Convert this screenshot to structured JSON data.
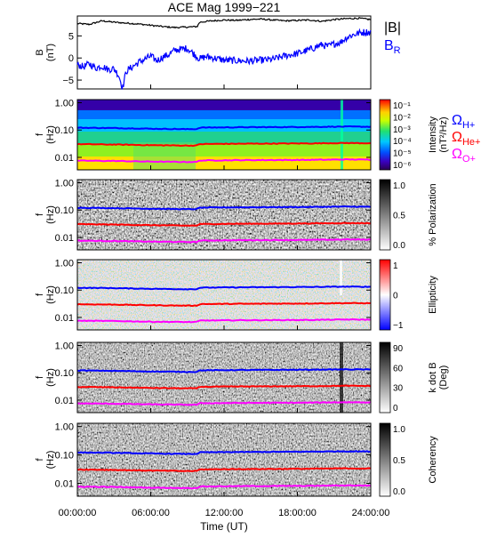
{
  "title": "ACE Mag 1999−221",
  "chart_data": [
    {
      "type": "line",
      "panel": "magnetic field",
      "ylabel": "B\n(nT)",
      "yticks": [
        "5",
        "0",
        "−5"
      ],
      "ylim": [
        -7,
        9.5
      ],
      "series": [
        {
          "name": "|B|",
          "color": "#000000",
          "points": [
            [
              0,
              7.8
            ],
            [
              1,
              7.6
            ],
            [
              2,
              8.4
            ],
            [
              3,
              8.1
            ],
            [
              4,
              7.9
            ],
            [
              5,
              7.7
            ],
            [
              6,
              7.4
            ],
            [
              7,
              7.1
            ],
            [
              8,
              6.9
            ],
            [
              9,
              7.0
            ],
            [
              9.8,
              7.1
            ],
            [
              10,
              8.1
            ],
            [
              11,
              8.4
            ],
            [
              12,
              8.6
            ],
            [
              13,
              8.5
            ],
            [
              14,
              8.7
            ],
            [
              15,
              8.8
            ],
            [
              16,
              8.6
            ],
            [
              17,
              8.4
            ],
            [
              18,
              8.5
            ],
            [
              19,
              8.6
            ],
            [
              20,
              8.3
            ],
            [
              21,
              8.7
            ],
            [
              22,
              8.9
            ],
            [
              23,
              9.0
            ],
            [
              24,
              8.7
            ]
          ]
        },
        {
          "name": "B",
          "subscript": "R",
          "color": "#0000ff",
          "points": [
            [
              0,
              -1.5
            ],
            [
              0.5,
              -2.0
            ],
            [
              1,
              -1.3
            ],
            [
              1.5,
              -2.3
            ],
            [
              2,
              -1.8
            ],
            [
              2.5,
              -2.6
            ],
            [
              3,
              -2.4
            ],
            [
              3.4,
              -4.0
            ],
            [
              3.7,
              -6.8
            ],
            [
              4,
              -3.0
            ],
            [
              4.5,
              -2.0
            ],
            [
              5,
              -1.0
            ],
            [
              5.5,
              -0.3
            ],
            [
              6,
              0.4
            ],
            [
              6.5,
              -0.6
            ],
            [
              7,
              0.2
            ],
            [
              7.5,
              0.8
            ],
            [
              8,
              1.8
            ],
            [
              8.5,
              2.0
            ],
            [
              9,
              2.2
            ],
            [
              9.5,
              1.0
            ],
            [
              10,
              -0.2
            ],
            [
              10.5,
              0.3
            ],
            [
              11,
              0.1
            ],
            [
              12,
              -0.5
            ],
            [
              13,
              -0.6
            ],
            [
              14,
              -0.7
            ],
            [
              15,
              -0.5
            ],
            [
              16,
              -0.3
            ],
            [
              17,
              0.5
            ],
            [
              18,
              1.0
            ],
            [
              19,
              1.9
            ],
            [
              20,
              3.0
            ],
            [
              20.5,
              2.6
            ],
            [
              21,
              3.2
            ],
            [
              21.5,
              3.5
            ],
            [
              22,
              4.6
            ],
            [
              22.5,
              5.2
            ],
            [
              23,
              5.6
            ],
            [
              23.5,
              5.9
            ],
            [
              24,
              5.8
            ]
          ]
        }
      ]
    },
    {
      "type": "heatmap",
      "panel": "power spectrum",
      "ylabel": "f\n(Hz)",
      "yticks": [
        "1.00",
        "0.10",
        "0.01"
      ],
      "colorbar_label": "Intensity\n(nT²/Hz)",
      "colorbar_ticks": [
        "10⁻¹",
        "10⁻²",
        "10⁻³",
        "10⁻⁴",
        "10⁻⁵",
        "10⁻⁶"
      ]
    },
    {
      "type": "heatmap",
      "panel": "polarization",
      "ylabel": "f\n(Hz)",
      "yticks": [
        "1.00",
        "0.10",
        "0.01"
      ],
      "colorbar_label": "% Polarization",
      "colorbar_ticks": [
        "1.0",
        "0.5",
        "0.0"
      ]
    },
    {
      "type": "heatmap",
      "panel": "ellipticity",
      "ylabel": "f\n(Hz)",
      "yticks": [
        "1.00",
        "0.10",
        "0.01"
      ],
      "colorbar_label": "Ellipticity",
      "colorbar_ticks": [
        "1",
        "0",
        "−1"
      ]
    },
    {
      "type": "heatmap",
      "panel": "k dot B",
      "ylabel": "f\n(Hz)",
      "yticks": [
        "1.00",
        "0.10",
        "0.01"
      ],
      "colorbar_label": "k dot B\n(Deg)",
      "colorbar_ticks": [
        "90",
        "60",
        "30",
        "0"
      ]
    },
    {
      "type": "heatmap",
      "panel": "coherency",
      "ylabel": "f\n(Hz)",
      "yticks": [
        "1.00",
        "0.10",
        "0.01"
      ],
      "colorbar_label": "Coherency",
      "colorbar_ticks": [
        "1.0",
        "0.5",
        "0.0"
      ]
    }
  ],
  "gyro_lines": [
    {
      "label": "Ω",
      "subscript": "H+",
      "color": "#0000ff",
      "points": [
        [
          0,
          0.122
        ],
        [
          3,
          0.118
        ],
        [
          6,
          0.112
        ],
        [
          9,
          0.108
        ],
        [
          9.8,
          0.109
        ],
        [
          10,
          0.123
        ],
        [
          13,
          0.126
        ],
        [
          16,
          0.128
        ],
        [
          19,
          0.13
        ],
        [
          22,
          0.134
        ],
        [
          24,
          0.132
        ]
      ]
    },
    {
      "label": "Ω",
      "subscript": "He+",
      "color": "#ff0000",
      "points": [
        [
          0,
          0.0305
        ],
        [
          3,
          0.0295
        ],
        [
          6,
          0.028
        ],
        [
          9,
          0.027
        ],
        [
          9.8,
          0.0272
        ],
        [
          10,
          0.0308
        ],
        [
          13,
          0.0315
        ],
        [
          16,
          0.032
        ],
        [
          19,
          0.0325
        ],
        [
          22,
          0.0335
        ],
        [
          24,
          0.033
        ]
      ]
    },
    {
      "label": "Ω",
      "subscript": "O+",
      "color": "#ff00ff",
      "points": [
        [
          0,
          0.0076
        ],
        [
          3,
          0.0074
        ],
        [
          6,
          0.007
        ],
        [
          9,
          0.0068
        ],
        [
          9.8,
          0.0068
        ],
        [
          10,
          0.0077
        ],
        [
          13,
          0.0079
        ],
        [
          16,
          0.008
        ],
        [
          19,
          0.0081
        ],
        [
          22,
          0.0084
        ],
        [
          24,
          0.0083
        ]
      ]
    }
  ],
  "x_axis": {
    "label": "Time (UT)",
    "ticks": [
      "00:00:00",
      "06:00:00",
      "12:00:00",
      "18:00:00",
      "24:00:00"
    ],
    "range_hours": [
      0,
      24
    ]
  },
  "legend": {
    "absB": "|B|",
    "br_main": "B",
    "br_sub": "R"
  },
  "colors": {
    "blue": "#0000ff",
    "red": "#ff0000",
    "magenta": "#ff00ff"
  }
}
